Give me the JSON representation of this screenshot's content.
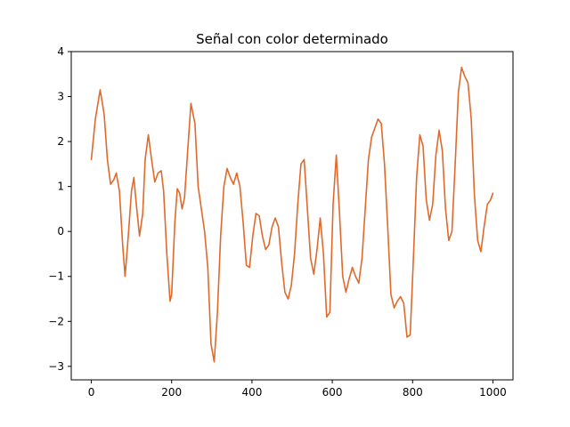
{
  "chart_data": {
    "type": "line",
    "title": "Señal con color determinado",
    "xlabel": "",
    "ylabel": "",
    "xlim": [
      -50,
      1050
    ],
    "ylim": [
      -3.3,
      4.0
    ],
    "xticks": [
      0,
      200,
      400,
      600,
      800,
      1000
    ],
    "yticks": [
      -3,
      -2,
      -1,
      0,
      1,
      2,
      3,
      4
    ],
    "xtick_labels": [
      "0",
      "200",
      "400",
      "600",
      "800",
      "1000"
    ],
    "ytick_labels": [
      "−3",
      "−2",
      "−1",
      "0",
      "1",
      "2",
      "3",
      "4"
    ],
    "grid": false,
    "legend": "none",
    "series": [
      {
        "color": "#e06a2b",
        "x": [
          0,
          10,
          22,
          32,
          40,
          48,
          56,
          62,
          70,
          78,
          84,
          92,
          100,
          106,
          112,
          120,
          128,
          134,
          142,
          150,
          158,
          166,
          174,
          180,
          188,
          196,
          200,
          208,
          214,
          220,
          226,
          232,
          240,
          248,
          258,
          266,
          274,
          282,
          290,
          298,
          306,
          314,
          322,
          330,
          338,
          346,
          354,
          362,
          370,
          378,
          386,
          394,
          402,
          410,
          418,
          426,
          434,
          442,
          450,
          458,
          466,
          474,
          482,
          490,
          498,
          506,
          514,
          522,
          530,
          538,
          546,
          554,
          562,
          570,
          578,
          586,
          594,
          602,
          610,
          618,
          626,
          634,
          642,
          650,
          658,
          666,
          674,
          682,
          690,
          698,
          706,
          714,
          722,
          730,
          738,
          746,
          754,
          762,
          770,
          778,
          786,
          794,
          802,
          810,
          818,
          826,
          834,
          842,
          850,
          858,
          866,
          874,
          882,
          890,
          898,
          906,
          914,
          922,
          930,
          938,
          946,
          954,
          962,
          970,
          978,
          986,
          994,
          1000
        ],
        "y": [
          1.6,
          2.5,
          3.15,
          2.6,
          1.6,
          1.05,
          1.15,
          1.3,
          0.9,
          -0.3,
          -1.0,
          -0.1,
          0.9,
          1.2,
          0.6,
          -0.1,
          0.4,
          1.6,
          2.15,
          1.6,
          1.1,
          1.3,
          1.35,
          0.9,
          -0.5,
          -1.55,
          -1.4,
          0.2,
          0.95,
          0.85,
          0.5,
          0.75,
          1.8,
          2.85,
          2.4,
          1.0,
          0.5,
          0.0,
          -0.8,
          -2.5,
          -2.9,
          -1.8,
          -0.1,
          1.0,
          1.4,
          1.2,
          1.05,
          1.3,
          1.0,
          0.2,
          -0.75,
          -0.8,
          -0.1,
          0.4,
          0.35,
          -0.1,
          -0.4,
          -0.3,
          0.1,
          0.3,
          0.1,
          -0.7,
          -1.35,
          -1.5,
          -1.2,
          -0.5,
          0.6,
          1.5,
          1.6,
          0.5,
          -0.6,
          -0.95,
          -0.4,
          0.3,
          -0.5,
          -1.9,
          -1.8,
          0.6,
          1.7,
          0.4,
          -1.0,
          -1.35,
          -1.05,
          -0.8,
          -1.0,
          -1.15,
          -0.6,
          0.5,
          1.6,
          2.1,
          2.3,
          2.5,
          2.4,
          1.5,
          0.1,
          -1.4,
          -1.7,
          -1.55,
          -1.45,
          -1.6,
          -2.35,
          -2.3,
          -0.6,
          1.2,
          2.15,
          1.9,
          0.7,
          0.25,
          0.6,
          1.7,
          2.25,
          1.8,
          0.5,
          -0.2,
          0.0,
          1.5,
          3.1,
          3.65,
          3.45,
          3.3,
          2.5,
          0.8,
          -0.2,
          -0.45,
          0.1,
          0.6,
          0.7,
          0.85
        ]
      }
    ]
  }
}
